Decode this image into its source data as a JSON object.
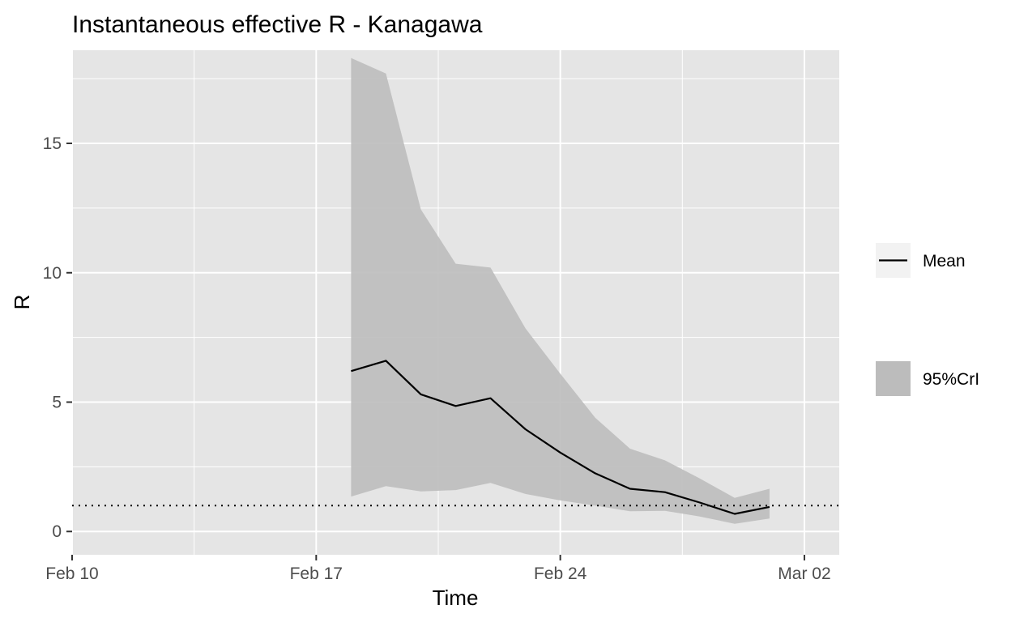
{
  "chart_data": {
    "type": "line",
    "title": "Instantaneous effective R -  Kanagawa",
    "xlabel": "Time",
    "ylabel": "R",
    "x_axis": {
      "type": "date",
      "min": "2020-02-10",
      "max": "2020-03-03",
      "ticks": [
        "2020-02-10",
        "2020-02-17",
        "2020-02-24",
        "2020-03-02"
      ],
      "tick_labels": [
        "Feb 10",
        "Feb 17",
        "Feb 24",
        "Mar 02"
      ]
    },
    "y_axis": {
      "min": -0.9,
      "max": 18.6,
      "ticks": [
        0,
        5,
        10,
        15
      ],
      "tick_labels": [
        "0",
        "5",
        "10",
        "15"
      ]
    },
    "grid": true,
    "reference_line": {
      "y": 1,
      "style": "dotted"
    },
    "x": [
      "2020-02-18",
      "2020-02-19",
      "2020-02-20",
      "2020-02-21",
      "2020-02-22",
      "2020-02-23",
      "2020-02-24",
      "2020-02-25",
      "2020-02-26",
      "2020-02-27",
      "2020-02-28",
      "2020-02-29",
      "2020-03-01"
    ],
    "series": [
      {
        "name": "Mean",
        "kind": "line",
        "color": "#000000",
        "values": [
          6.2,
          6.6,
          5.3,
          4.85,
          5.15,
          3.95,
          3.05,
          2.25,
          1.65,
          1.52,
          1.12,
          0.68,
          0.95
        ]
      },
      {
        "name": "95%CrI",
        "kind": "ribbon",
        "color": "#bcbcbc",
        "lower": [
          1.35,
          1.75,
          1.55,
          1.6,
          1.88,
          1.45,
          1.2,
          1.0,
          0.78,
          0.8,
          0.58,
          0.3,
          0.5
        ],
        "upper": [
          18.3,
          17.7,
          12.45,
          10.35,
          10.2,
          7.85,
          6.1,
          4.4,
          3.2,
          2.75,
          2.05,
          1.3,
          1.65
        ]
      }
    ],
    "legend_position": "right",
    "legend": [
      {
        "label": "Mean",
        "kind": "line"
      },
      {
        "label": "95%CrI",
        "kind": "fill"
      }
    ]
  },
  "colors": {
    "panel_background": "#e5e5e5",
    "grid": "#ffffff",
    "ribbon": "#bcbcbc",
    "line": "#000000",
    "legend_key_background": "#f2f2f2",
    "tick_text": "#4d4d4d"
  }
}
